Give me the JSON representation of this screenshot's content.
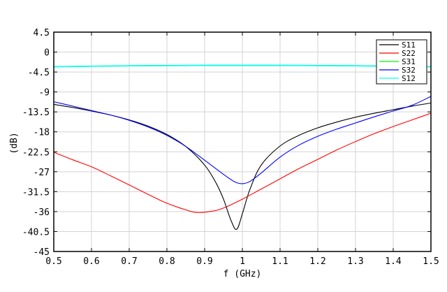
{
  "chart_data": {
    "type": "line",
    "title": "",
    "xlabel": "f (GHz)",
    "ylabel": "(dB)",
    "xlim": [
      0.5,
      1.5
    ],
    "ylim": [
      -45,
      4.5
    ],
    "grid": true,
    "legend_position": "upper right",
    "x_ticks": [
      "0.5",
      "0.6",
      "0.7",
      "0.8",
      "0.9",
      "1",
      "1.1",
      "1.2",
      "1.3",
      "1.4",
      "1.5"
    ],
    "y_ticks": [
      "4.5",
      "0",
      "-4.5",
      "-9",
      "-13.5",
      "-18",
      "-22.5",
      "-27",
      "-31.5",
      "-36",
      "-40.5",
      "-45"
    ],
    "series": [
      {
        "name": "S11",
        "color": "#000000",
        "x": [
          0.5,
          0.55,
          0.6,
          0.65,
          0.7,
          0.75,
          0.8,
          0.85,
          0.9,
          0.93,
          0.95,
          0.97,
          0.985,
          1.0,
          1.02,
          1.05,
          1.1,
          1.15,
          1.2,
          1.25,
          1.3,
          1.35,
          1.4,
          1.45,
          1.5
        ],
        "values": [
          -11.8,
          -12.5,
          -13.3,
          -14.2,
          -15.3,
          -16.7,
          -18.6,
          -21.3,
          -25.5,
          -29.5,
          -33.2,
          -38.0,
          -40.0,
          -36.5,
          -31.0,
          -25.5,
          -21.2,
          -18.8,
          -17.1,
          -15.8,
          -14.7,
          -13.8,
          -13.0,
          -12.2,
          -11.5
        ]
      },
      {
        "name": "S22",
        "color": "#ff0000",
        "x": [
          0.5,
          0.55,
          0.6,
          0.65,
          0.7,
          0.75,
          0.8,
          0.85,
          0.88,
          0.92,
          0.95,
          1.0,
          1.05,
          1.1,
          1.15,
          1.2,
          1.25,
          1.3,
          1.35,
          1.4,
          1.45,
          1.5
        ],
        "values": [
          -22.6,
          -24.3,
          -25.9,
          -27.9,
          -30.0,
          -32.1,
          -34.1,
          -35.6,
          -36.2,
          -35.9,
          -35.2,
          -33.2,
          -30.9,
          -28.6,
          -26.3,
          -24.2,
          -22.1,
          -20.2,
          -18.4,
          -16.8,
          -15.3,
          -13.8
        ]
      },
      {
        "name": "S31",
        "color": "#00ff00",
        "x": [
          0.5,
          0.7,
          0.9,
          1.0,
          1.1,
          1.3,
          1.5
        ],
        "values": [
          -3.3,
          -3.1,
          -3.0,
          -3.0,
          -3.0,
          -3.1,
          -3.3
        ]
      },
      {
        "name": "S32",
        "color": "#0000ff",
        "x": [
          0.5,
          0.55,
          0.6,
          0.65,
          0.7,
          0.75,
          0.8,
          0.85,
          0.9,
          0.95,
          0.98,
          1.0,
          1.02,
          1.05,
          1.1,
          1.15,
          1.2,
          1.25,
          1.3,
          1.35,
          1.4,
          1.45,
          1.5
        ],
        "values": [
          -11.2,
          -12.2,
          -13.2,
          -14.2,
          -15.4,
          -16.9,
          -18.8,
          -21.3,
          -24.4,
          -27.6,
          -29.3,
          -29.7,
          -29.2,
          -27.3,
          -23.7,
          -21.0,
          -19.0,
          -17.4,
          -16.0,
          -14.6,
          -13.3,
          -12.0,
          -10.0
        ]
      },
      {
        "name": "S12",
        "color": "#00ffff",
        "x": [
          0.5,
          0.7,
          0.9,
          1.0,
          1.1,
          1.3,
          1.5
        ],
        "values": [
          -3.3,
          -3.1,
          -3.0,
          -3.0,
          -3.0,
          -3.1,
          -3.3
        ]
      }
    ]
  }
}
